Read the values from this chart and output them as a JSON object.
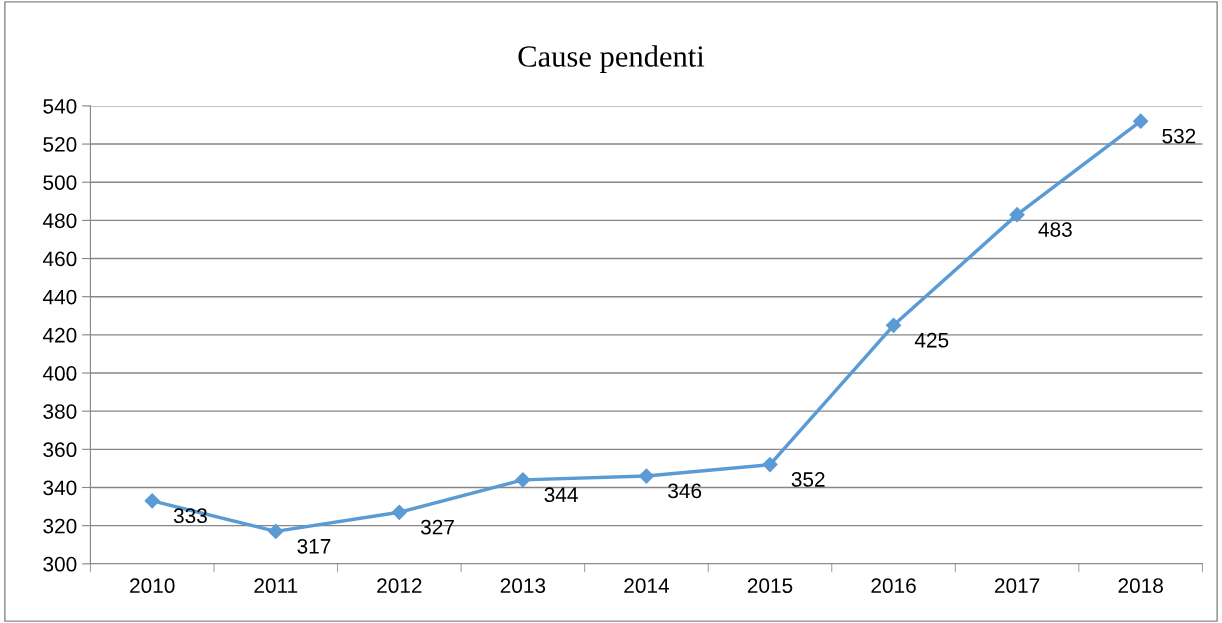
{
  "chart_data": {
    "type": "line",
    "title": "Cause pendenti",
    "categories": [
      "2010",
      "2011",
      "2012",
      "2013",
      "2014",
      "2015",
      "2016",
      "2017",
      "2018"
    ],
    "series": [
      {
        "color": "#5b9bd5",
        "values": [
          333,
          317,
          327,
          344,
          346,
          352,
          425,
          483,
          532
        ]
      }
    ],
    "ylim": [
      300,
      540
    ],
    "yticks": [
      300,
      320,
      340,
      360,
      380,
      400,
      420,
      440,
      460,
      480,
      500,
      520,
      540
    ],
    "grid": "y",
    "marker": "diamond",
    "line_style": "solid",
    "data_labels": true,
    "legend": false
  }
}
